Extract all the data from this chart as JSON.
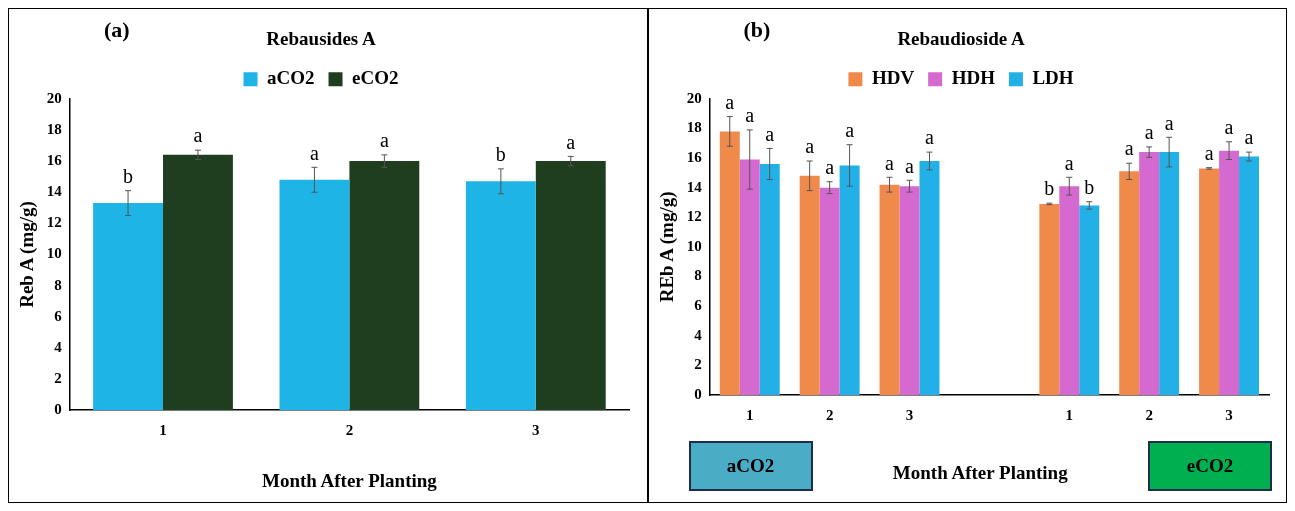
{
  "chart_data": [
    {
      "type": "bar",
      "title": "Rebausides A",
      "xlabel": "Month After Planting",
      "ylabel": "Reb A (mg/g)",
      "annotations": [
        "(a)"
      ],
      "categories": [
        "1",
        "2",
        "3"
      ],
      "ylim": [
        0,
        20
      ],
      "yticks": [
        0,
        2,
        4,
        6,
        8,
        10,
        12,
        14,
        16,
        18,
        20
      ],
      "grid": false,
      "legend": "top",
      "series": [
        {
          "name": "aCO2",
          "color": "#1eb4e6",
          "values": [
            13.3,
            14.8,
            14.7
          ],
          "errors": [
            0.8,
            0.8,
            0.8
          ],
          "value_labels": [
            "b",
            "a",
            "b"
          ]
        },
        {
          "name": "eCO2",
          "color": "#1f3d1f",
          "values": [
            16.4,
            16.0,
            16.0
          ],
          "errors": [
            0.3,
            0.4,
            0.3
          ],
          "value_labels": [
            "a",
            "a",
            "a"
          ]
        }
      ]
    },
    {
      "type": "bar",
      "title": "Rebaudioside A",
      "xlabel": "Month After Planting",
      "ylabel": "REb A (mg/g)",
      "annotations": [
        "(b)",
        "aCO2",
        "eCO2"
      ],
      "categories": [
        "1",
        "2",
        "3",
        null,
        "1",
        "2",
        "3"
      ],
      "ylim": [
        0,
        20
      ],
      "yticks": [
        0,
        2,
        4,
        6,
        8,
        10,
        12,
        14,
        16,
        18,
        20
      ],
      "grid": false,
      "legend": "top",
      "series": [
        {
          "name": "HDV",
          "color": "#f08a4b",
          "values": [
            17.8,
            14.8,
            14.2,
            null,
            12.9,
            15.1,
            15.3
          ],
          "errors": [
            1.0,
            1.0,
            0.5,
            null,
            0.05,
            0.55,
            0.05
          ],
          "value_labels": [
            "a",
            "a",
            "a",
            null,
            "b",
            "a",
            "a"
          ]
        },
        {
          "name": "HDH",
          "color": "#d46ad0",
          "values": [
            15.9,
            14.0,
            14.1,
            null,
            14.1,
            16.4,
            16.5
          ],
          "errors": [
            2.0,
            0.4,
            0.4,
            null,
            0.6,
            0.35,
            0.6
          ],
          "value_labels": [
            "a",
            "a",
            "a",
            null,
            "a",
            "a",
            "a"
          ]
        },
        {
          "name": "LDH",
          "color": "#22b0e6",
          "values": [
            15.6,
            15.5,
            15.8,
            null,
            12.8,
            16.4,
            16.1
          ],
          "errors": [
            1.05,
            1.4,
            0.6,
            null,
            0.25,
            1.0,
            0.3
          ],
          "value_labels": [
            "a",
            "a",
            "a",
            null,
            "b",
            "a",
            "a"
          ]
        }
      ]
    }
  ]
}
